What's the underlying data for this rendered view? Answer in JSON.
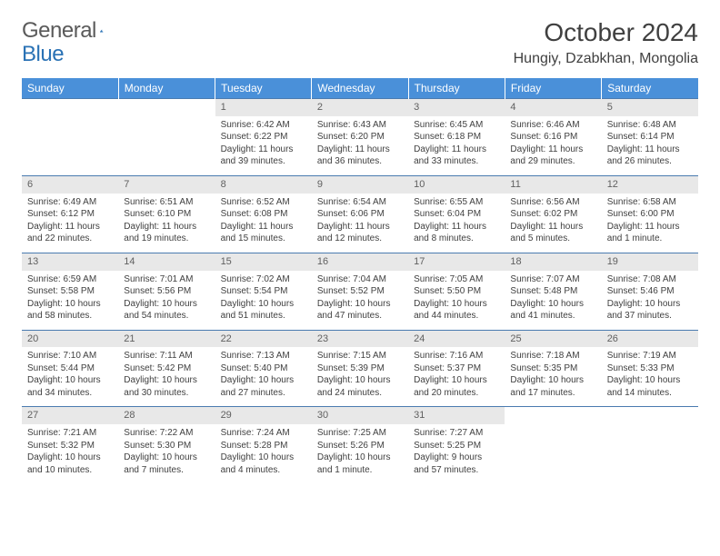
{
  "brand": {
    "name1": "General",
    "name2": "Blue"
  },
  "title": "October 2024",
  "location": "Hungiy, Dzabkhan, Mongolia",
  "header_bg": "#4a90d9",
  "header_fg": "#ffffff",
  "daynum_bg": "#e8e8e8",
  "border_color": "#4a7bb0",
  "days": [
    "Sunday",
    "Monday",
    "Tuesday",
    "Wednesday",
    "Thursday",
    "Friday",
    "Saturday"
  ],
  "weeks": [
    [
      null,
      null,
      {
        "n": "1",
        "sr": "6:42 AM",
        "ss": "6:22 PM",
        "dl": "11 hours and 39 minutes."
      },
      {
        "n": "2",
        "sr": "6:43 AM",
        "ss": "6:20 PM",
        "dl": "11 hours and 36 minutes."
      },
      {
        "n": "3",
        "sr": "6:45 AM",
        "ss": "6:18 PM",
        "dl": "11 hours and 33 minutes."
      },
      {
        "n": "4",
        "sr": "6:46 AM",
        "ss": "6:16 PM",
        "dl": "11 hours and 29 minutes."
      },
      {
        "n": "5",
        "sr": "6:48 AM",
        "ss": "6:14 PM",
        "dl": "11 hours and 26 minutes."
      }
    ],
    [
      {
        "n": "6",
        "sr": "6:49 AM",
        "ss": "6:12 PM",
        "dl": "11 hours and 22 minutes."
      },
      {
        "n": "7",
        "sr": "6:51 AM",
        "ss": "6:10 PM",
        "dl": "11 hours and 19 minutes."
      },
      {
        "n": "8",
        "sr": "6:52 AM",
        "ss": "6:08 PM",
        "dl": "11 hours and 15 minutes."
      },
      {
        "n": "9",
        "sr": "6:54 AM",
        "ss": "6:06 PM",
        "dl": "11 hours and 12 minutes."
      },
      {
        "n": "10",
        "sr": "6:55 AM",
        "ss": "6:04 PM",
        "dl": "11 hours and 8 minutes."
      },
      {
        "n": "11",
        "sr": "6:56 AM",
        "ss": "6:02 PM",
        "dl": "11 hours and 5 minutes."
      },
      {
        "n": "12",
        "sr": "6:58 AM",
        "ss": "6:00 PM",
        "dl": "11 hours and 1 minute."
      }
    ],
    [
      {
        "n": "13",
        "sr": "6:59 AM",
        "ss": "5:58 PM",
        "dl": "10 hours and 58 minutes."
      },
      {
        "n": "14",
        "sr": "7:01 AM",
        "ss": "5:56 PM",
        "dl": "10 hours and 54 minutes."
      },
      {
        "n": "15",
        "sr": "7:02 AM",
        "ss": "5:54 PM",
        "dl": "10 hours and 51 minutes."
      },
      {
        "n": "16",
        "sr": "7:04 AM",
        "ss": "5:52 PM",
        "dl": "10 hours and 47 minutes."
      },
      {
        "n": "17",
        "sr": "7:05 AM",
        "ss": "5:50 PM",
        "dl": "10 hours and 44 minutes."
      },
      {
        "n": "18",
        "sr": "7:07 AM",
        "ss": "5:48 PM",
        "dl": "10 hours and 41 minutes."
      },
      {
        "n": "19",
        "sr": "7:08 AM",
        "ss": "5:46 PM",
        "dl": "10 hours and 37 minutes."
      }
    ],
    [
      {
        "n": "20",
        "sr": "7:10 AM",
        "ss": "5:44 PM",
        "dl": "10 hours and 34 minutes."
      },
      {
        "n": "21",
        "sr": "7:11 AM",
        "ss": "5:42 PM",
        "dl": "10 hours and 30 minutes."
      },
      {
        "n": "22",
        "sr": "7:13 AM",
        "ss": "5:40 PM",
        "dl": "10 hours and 27 minutes."
      },
      {
        "n": "23",
        "sr": "7:15 AM",
        "ss": "5:39 PM",
        "dl": "10 hours and 24 minutes."
      },
      {
        "n": "24",
        "sr": "7:16 AM",
        "ss": "5:37 PM",
        "dl": "10 hours and 20 minutes."
      },
      {
        "n": "25",
        "sr": "7:18 AM",
        "ss": "5:35 PM",
        "dl": "10 hours and 17 minutes."
      },
      {
        "n": "26",
        "sr": "7:19 AM",
        "ss": "5:33 PM",
        "dl": "10 hours and 14 minutes."
      }
    ],
    [
      {
        "n": "27",
        "sr": "7:21 AM",
        "ss": "5:32 PM",
        "dl": "10 hours and 10 minutes."
      },
      {
        "n": "28",
        "sr": "7:22 AM",
        "ss": "5:30 PM",
        "dl": "10 hours and 7 minutes."
      },
      {
        "n": "29",
        "sr": "7:24 AM",
        "ss": "5:28 PM",
        "dl": "10 hours and 4 minutes."
      },
      {
        "n": "30",
        "sr": "7:25 AM",
        "ss": "5:26 PM",
        "dl": "10 hours and 1 minute."
      },
      {
        "n": "31",
        "sr": "7:27 AM",
        "ss": "5:25 PM",
        "dl": "9 hours and 57 minutes."
      },
      null,
      null
    ]
  ],
  "labels": {
    "sunrise": "Sunrise:",
    "sunset": "Sunset:",
    "daylight": "Daylight:"
  }
}
